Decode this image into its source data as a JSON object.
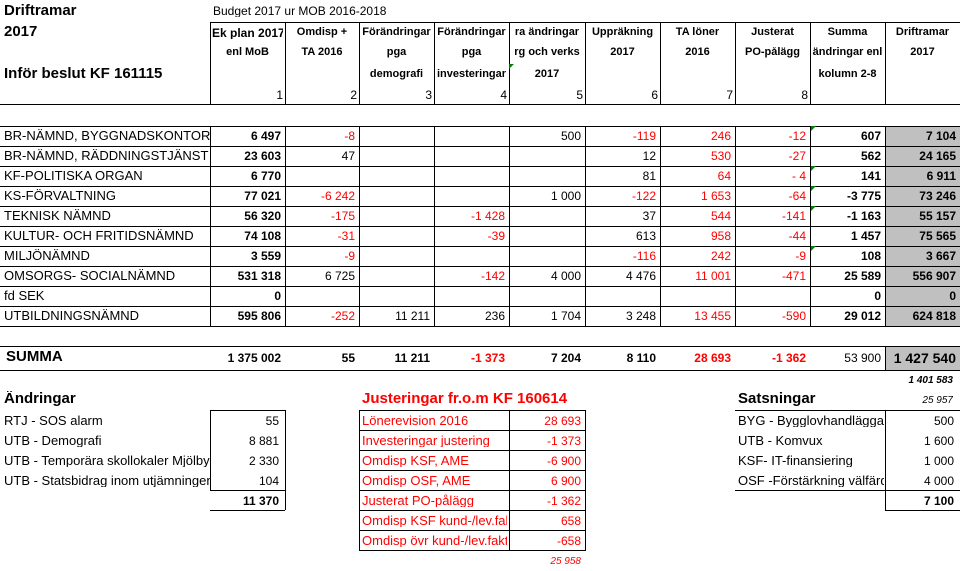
{
  "title": {
    "line1": "Driftramar",
    "line2": "2017",
    "line3": "Inför beslut KF 161115",
    "budget_note": "Budget 2017 ur MOB 2016-2018"
  },
  "headers": [
    {
      "l1": "Ek plan 2017",
      "l2": "enl MoB",
      "l3": "",
      "num": "1"
    },
    {
      "l1": "Omdisp +",
      "l2": "TA 2016",
      "l3": "",
      "num": "2"
    },
    {
      "l1": "Förändringar",
      "l2": "pga",
      "l3": "demografi",
      "num": "3"
    },
    {
      "l1": "Förändringar",
      "l2": "pga",
      "l3": "investeringar",
      "num": "4"
    },
    {
      "l1": "ra ändringar",
      "l2": "rg och verks",
      "l3": "2017",
      "num": "5"
    },
    {
      "l1": "Uppräkning",
      "l2": "2017",
      "l3": "",
      "num": "6"
    },
    {
      "l1": "TA löner",
      "l2": "2016",
      "l3": "",
      "num": "7"
    },
    {
      "l1": "Justerat",
      "l2": "PO-pålägg",
      "l3": "",
      "num": "8"
    },
    {
      "l1": "Summa",
      "l2": "ändringar enl",
      "l3": "kolumn 2-8",
      "num": ""
    },
    {
      "l1": "Driftramar",
      "l2": "2017",
      "l3": "",
      "num": ""
    }
  ],
  "rows": [
    {
      "name": "BR-NÄMND, BYGGNADSKONTOR",
      "v": [
        "6 497",
        "-8",
        "",
        "",
        "500",
        "-119",
        "246",
        "-12",
        "607",
        "7 104"
      ]
    },
    {
      "name": "BR-NÄMND, RÄDDNINGSTJÄNST",
      "v": [
        "23 603",
        "47",
        "",
        "",
        "",
        "12",
        "530",
        "-27",
        "562",
        "24 165"
      ]
    },
    {
      "name": "KF-POLITISKA ORGAN",
      "v": [
        "6 770",
        "",
        "",
        "",
        "",
        "81",
        "64",
        "- 4",
        "141",
        "6 911"
      ]
    },
    {
      "name": "KS-FÖRVALTNING",
      "v": [
        "77 021",
        "-6 242",
        "",
        "",
        "1 000",
        "-122",
        "1 653",
        "-64",
        "-3 775",
        "73 246"
      ]
    },
    {
      "name": "TEKNISK NÄMND",
      "v": [
        "56 320",
        "-175",
        "",
        "-1 428",
        "",
        "37",
        "544",
        "-141",
        "-1 163",
        "55 157"
      ]
    },
    {
      "name": "KULTUR- OCH FRITIDSNÄMND",
      "v": [
        "74 108",
        "-31",
        "",
        "-39",
        "",
        "613",
        "958",
        "-44",
        "1 457",
        "75 565"
      ]
    },
    {
      "name": "MILJÖNÄMND",
      "v": [
        "3 559",
        "-9",
        "",
        "",
        "",
        "-116",
        "242",
        "-9",
        "108",
        "3 667"
      ]
    },
    {
      "name": "OMSORGS- SOCIALNÄMND",
      "v": [
        "531 318",
        "6 725",
        "",
        "-142",
        "4 000",
        "4 476",
        "11 001",
        "-471",
        "25 589",
        "556 907"
      ]
    },
    {
      "name": "fd SEK",
      "v": [
        "0",
        "",
        "",
        "",
        "",
        "",
        "",
        "",
        "0",
        "0"
      ]
    },
    {
      "name": "UTBILDNINGSNÄMND",
      "v": [
        "595 806",
        "-252",
        "11 211",
        "236",
        "1 704",
        "3 248",
        "13 455",
        "-590",
        "29 012",
        "624 818"
      ]
    }
  ],
  "summa": {
    "label": "SUMMA",
    "v": [
      "1 375 002",
      "55",
      "11 211",
      "-1 373",
      "7 204",
      "8 110",
      "28 693",
      "-1 362",
      "53 900",
      "1 427 540"
    ],
    "below1": "1 401 583",
    "below2": "25 957"
  },
  "andringar": {
    "title": "Ändringar",
    "items": [
      {
        "label": "RTJ - SOS alarm",
        "value": "55"
      },
      {
        "label": "UTB - Demografi",
        "value": "8 881"
      },
      {
        "label": "UTB - Temporära skollokaler Mjölby",
        "value": "2 330"
      },
      {
        "label": "UTB - Statsbidrag inom utjämningen",
        "value": "104"
      }
    ],
    "total": "11 370"
  },
  "justeringar": {
    "title": "Justeringar fr.o.m KF 160614",
    "items": [
      {
        "label": "Lönerevision 2016",
        "value": "28 693"
      },
      {
        "label": "Investeringar justering",
        "value": "-1 373"
      },
      {
        "label": "Omdisp KSF, AME",
        "value": "-6 900"
      },
      {
        "label": "Omdisp OSF, AME",
        "value": "6 900"
      },
      {
        "label": "Justerat PO-pålägg",
        "value": "-1 362"
      },
      {
        "label": "Omdisp KSF kund-/lev.fakt",
        "value": "658"
      },
      {
        "label": "Omdisp övr kund-/lev.fakt",
        "value": "-658"
      }
    ],
    "total": "25 958"
  },
  "satsningar": {
    "title": "Satsningar",
    "items": [
      {
        "label": "BYG - Bygglovhandläggare",
        "value": "500"
      },
      {
        "label": "UTB - Komvux",
        "value": "1 600"
      },
      {
        "label": "KSF- IT-finansiering",
        "value": "1 000"
      },
      {
        "label": "OSF -Förstärkning välfärd",
        "value": "4 000"
      }
    ],
    "total": "7 100"
  },
  "colors": {
    "negative": "#ff0000",
    "shade": "#c0c0c0",
    "comment_marker": "#008000"
  }
}
